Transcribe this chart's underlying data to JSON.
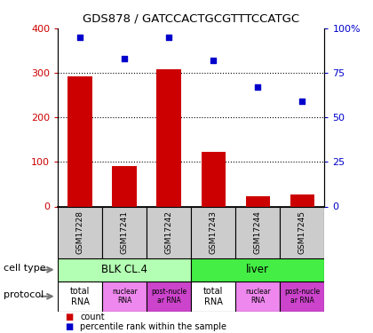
{
  "title": "GDS878 / GATCCACTGCGTTTCCATGC",
  "samples": [
    "GSM17228",
    "GSM17241",
    "GSM17242",
    "GSM17243",
    "GSM17244",
    "GSM17245"
  ],
  "counts": [
    293,
    90,
    308,
    122,
    22,
    27
  ],
  "percentiles": [
    95,
    83,
    95,
    82,
    67,
    59
  ],
  "ylim_left": [
    0,
    400
  ],
  "ylim_right": [
    0,
    100
  ],
  "yticks_left": [
    0,
    100,
    200,
    300,
    400
  ],
  "yticks_right": [
    0,
    25,
    50,
    75,
    100
  ],
  "ytick_labels_right": [
    "0",
    "25",
    "50",
    "75",
    "100%"
  ],
  "bar_color": "#cc0000",
  "scatter_color": "#0000cc",
  "cell_types": [
    {
      "label": "BLK CL.4",
      "span": [
        0,
        3
      ],
      "color": "#b3ffb3"
    },
    {
      "label": "liver",
      "span": [
        3,
        6
      ],
      "color": "#44ee44"
    }
  ],
  "protocol_colors": [
    "#ffffff",
    "#ee88ee",
    "#cc44cc",
    "#ffffff",
    "#ee88ee",
    "#cc44cc"
  ],
  "protocol_labels": [
    "total\nRNA",
    "nuclear\nRNA",
    "post-nucle\nar RNA",
    "total\nRNA",
    "nuclear\nRNA",
    "post-nucle\nar RNA"
  ],
  "legend_count_color": "#cc0000",
  "legend_pct_color": "#0000cc",
  "xlabel_cell_type": "cell type",
  "xlabel_protocol": "protocol",
  "sample_box_color": "#cccccc"
}
